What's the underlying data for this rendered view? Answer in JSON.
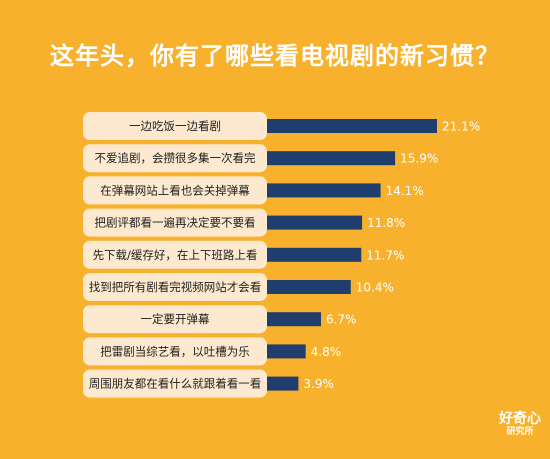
{
  "header": {
    "title": "这年头，你有了哪些看电视剧的新习惯？"
  },
  "colors": {
    "background": "#F7B12C",
    "label_box": "#FDE9CF",
    "bar": "#1F3E6E",
    "value_text": "#FFFFFF",
    "label_text": "#222222"
  },
  "chart_data": {
    "type": "bar",
    "orientation": "horizontal",
    "title": "这年头，你有了哪些看电视剧的新习惯？",
    "xlabel": "",
    "ylabel": "",
    "xlim": [
      0,
      21.1
    ],
    "grid": false,
    "legend": "none",
    "categories": [
      "一边吃饭一边看剧",
      "不爱追剧，会攒很多集一次看完",
      "在弹幕网站上看也会关掉弹幕",
      "把剧评都看一遍再决定要不要看",
      "先下载/缓存好，在上下班路上看",
      "找到把所有剧看完视频网站才会看",
      "一定要开弹幕",
      "把雷剧当综艺看，以吐槽为乐",
      "周围朋友都在看什么就跟着看一看"
    ],
    "values": [
      21.1,
      15.9,
      14.1,
      11.8,
      11.7,
      10.4,
      6.7,
      4.8,
      3.9
    ],
    "value_labels": [
      "21.1%",
      "15.9%",
      "14.1%",
      "11.8%",
      "11.7%",
      "10.4%",
      "6.7%",
      "4.8%",
      "3.9%"
    ]
  },
  "brand": {
    "line1": "好奇心",
    "line2": "研究所"
  }
}
